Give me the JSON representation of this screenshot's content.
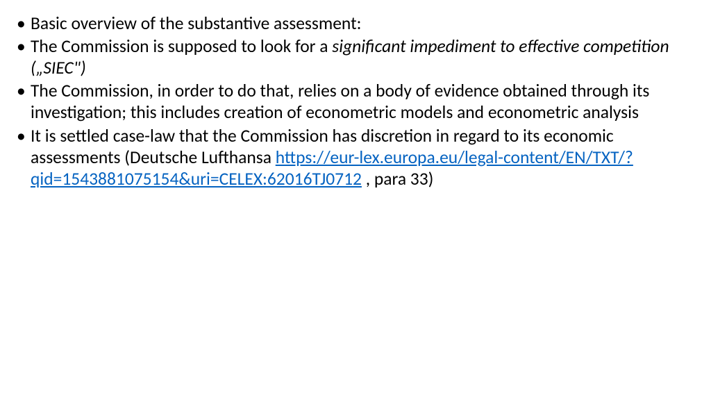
{
  "slide": {
    "background_color": "#ffffff",
    "text_color": "#000000",
    "link_color": "#0563c1",
    "font_family": "Calibri",
    "font_size_pt": 19,
    "bullets": [
      {
        "text_plain": "Basic overview of the substantive assessment:"
      },
      {
        "text_leading": "The Commission is supposed to look for a ",
        "text_italic": "significant impediment to effective competition („SIEC\")"
      },
      {
        "text_plain": "The Commission, in order to do that, relies on a body of evidence obtained through its investigation; this includes creation of econometric models and econometric analysis"
      },
      {
        "text_leading": "It is settled case-law that the Commission has discretion in regard to its economic assessments (Deutsche Lufthansa ",
        "link_text": "https://eur-lex.europa.eu/legal-content/EN/TXT/?qid=1543881075154&uri=CELEX:62016TJ0712",
        "text_trailing": " , para 33)"
      }
    ]
  }
}
